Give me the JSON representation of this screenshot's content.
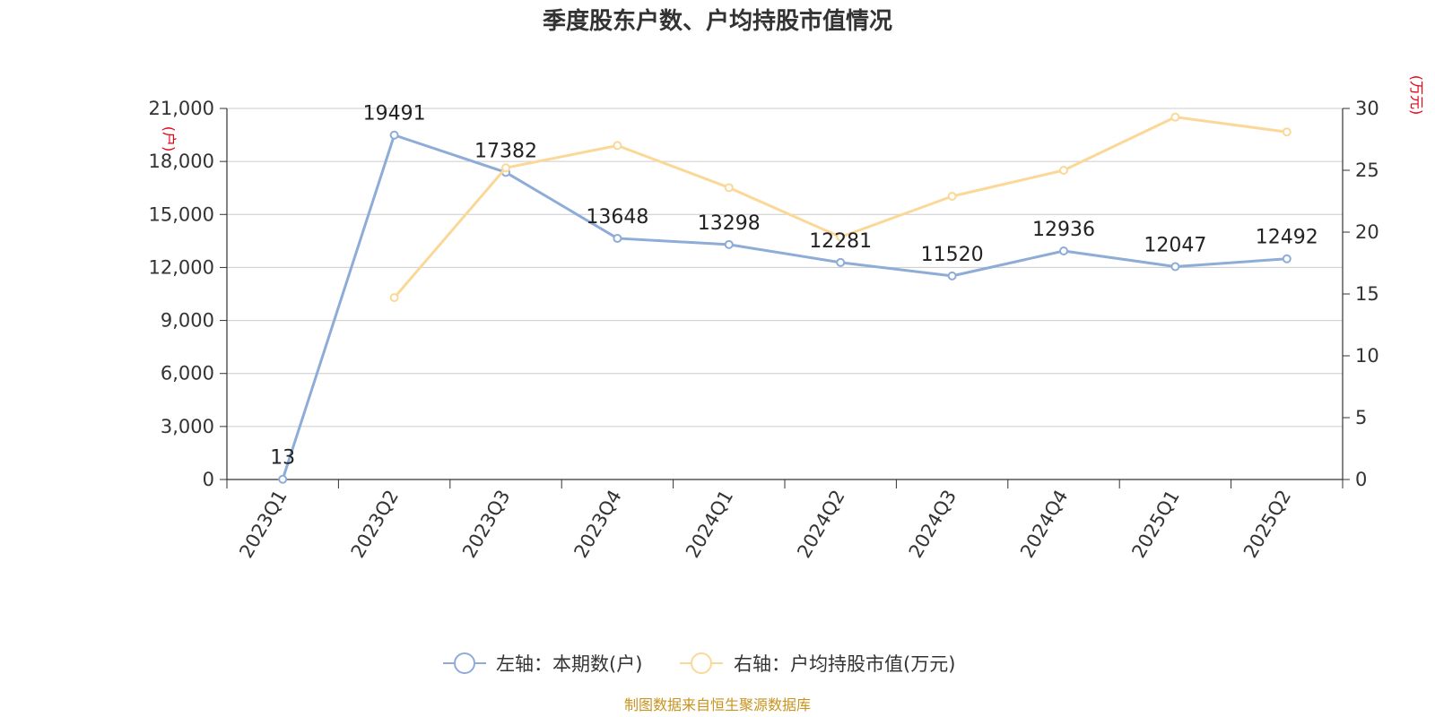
{
  "title": "季度股东户数、户均持股市值情况",
  "source": "制图数据来自恒生聚源数据库",
  "chart_data": {
    "type": "line",
    "title": "季度股东户数、户均持股市值情况",
    "categories": [
      "2023Q1",
      "2023Q2",
      "2023Q3",
      "2023Q4",
      "2024Q1",
      "2024Q2",
      "2024Q3",
      "2024Q4",
      "2025Q1",
      "2025Q2"
    ],
    "left_axis": {
      "unit_label": "(户)",
      "range": [
        0,
        21000
      ],
      "ticks": [
        "0",
        "3,000",
        "6,000",
        "9,000",
        "12,000",
        "15,000",
        "18,000",
        "21,000"
      ]
    },
    "right_axis": {
      "unit_label": "(万元)",
      "range": [
        0,
        30
      ],
      "ticks": [
        "0",
        "5",
        "10",
        "15",
        "20",
        "25",
        "30"
      ]
    },
    "grid": true,
    "legend_position": "bottom",
    "series": [
      {
        "name": "左轴：本期数(户)",
        "axis": "left",
        "color": "#8eacd8",
        "values": [
          13,
          19491,
          17382,
          13648,
          13298,
          12281,
          11520,
          12936,
          12047,
          12492
        ],
        "labels": [
          "13",
          "19491",
          "17382",
          "13648",
          "13298",
          "12281",
          "11520",
          "12936",
          "12047",
          "12492"
        ]
      },
      {
        "name": "右轴：户均持股市值(万元)",
        "axis": "right",
        "color": "#fbd898",
        "values": [
          null,
          14.7,
          25.2,
          27.0,
          23.6,
          19.6,
          22.9,
          25.0,
          29.3,
          28.1
        ]
      }
    ]
  }
}
